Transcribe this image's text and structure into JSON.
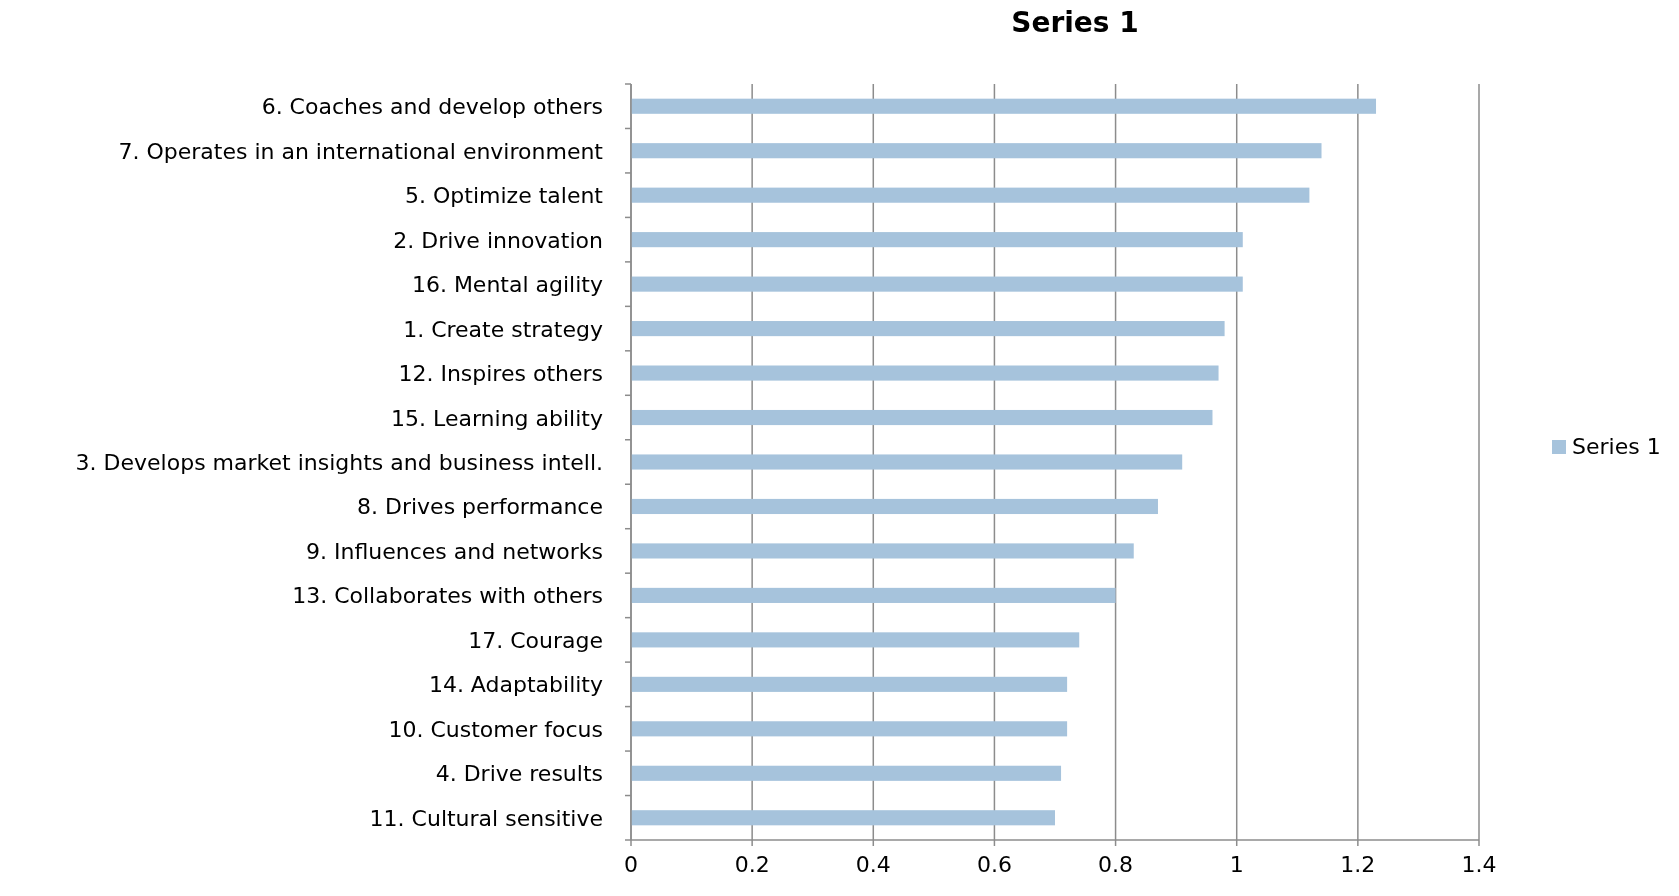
{
  "chart_data": {
    "type": "bar",
    "orientation": "horizontal",
    "title": "Series 1",
    "categories": [
      "6. Coaches and develop others",
      "7. Operates in an international environment",
      "5. Optimize talent",
      "2. Drive innovation",
      "16. Mental agility",
      "1. Create strategy",
      "12. Inspires others",
      "15. Learning ability",
      "3. Develops market insights and business intell.",
      "8. Drives performance",
      "9. Influences and networks",
      "13. Collaborates with others",
      "17. Courage",
      "14. Adaptability",
      "10. Customer focus",
      "4. Drive results",
      "11. Cultural sensitive"
    ],
    "series": [
      {
        "name": "Series 1",
        "color": "#a6c3dc",
        "values": [
          1.23,
          1.14,
          1.12,
          1.01,
          1.01,
          0.98,
          0.97,
          0.96,
          0.91,
          0.87,
          0.83,
          0.8,
          0.74,
          0.72,
          0.72,
          0.71,
          0.7
        ]
      }
    ],
    "xlim": [
      0,
      1.4
    ],
    "xticks": [
      0,
      0.2,
      0.4,
      0.6,
      0.8,
      1,
      1.2,
      1.4
    ],
    "grid": "x",
    "legend": "right"
  }
}
